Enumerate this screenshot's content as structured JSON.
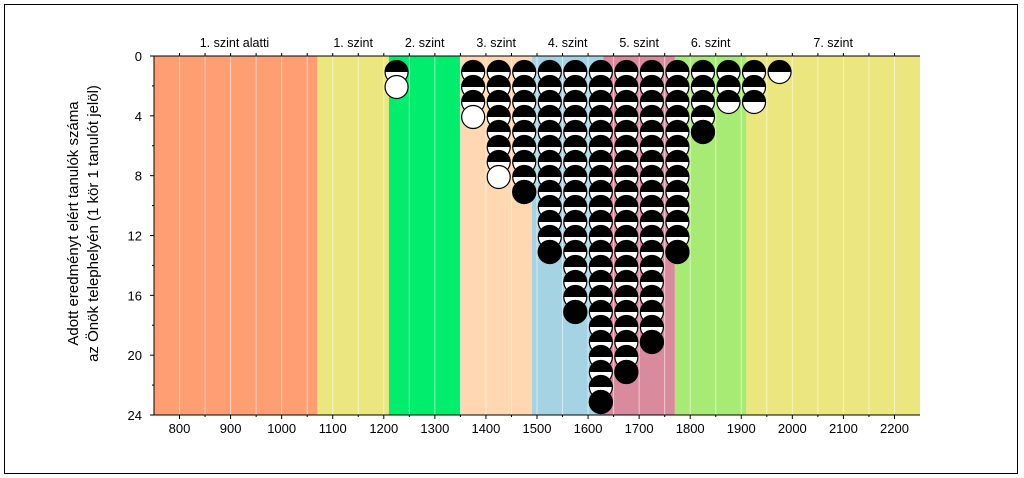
{
  "chart_data": {
    "type": "scatter",
    "title": "",
    "ylabel_lines": [
      "Adott eredményt elért tanulók száma",
      "az Önök telephelyén (1 kör 1 tanulót jelöl)"
    ],
    "xlabel": "",
    "xlim": [
      750,
      2250
    ],
    "ylim": [
      0,
      24
    ],
    "x_ticks": [
      800,
      900,
      1000,
      1100,
      1200,
      1300,
      1400,
      1500,
      1600,
      1700,
      1800,
      1900,
      2000,
      2100,
      2200
    ],
    "y_ticks": [
      0,
      4,
      8,
      12,
      16,
      20,
      24
    ],
    "y_inverted": true,
    "grid": "vertical lines every 50",
    "bands": [
      {
        "label": "1. szint alatti",
        "from": 750,
        "to": 1070,
        "color": "#ff9e73"
      },
      {
        "label": "1. szint",
        "from": 1070,
        "to": 1210,
        "color": "#ebe67e"
      },
      {
        "label": "2. szint",
        "from": 1210,
        "to": 1350,
        "color": "#00ee6b"
      },
      {
        "label": "3. szint",
        "from": 1350,
        "to": 1490,
        "color": "#ffd7b1"
      },
      {
        "label": "4. szint",
        "from": 1490,
        "to": 1630,
        "color": "#a4d4e4"
      },
      {
        "label": "5. szint",
        "from": 1630,
        "to": 1770,
        "color": "#d98a9d"
      },
      {
        "label": "6. szint",
        "from": 1770,
        "to": 1910,
        "color": "#a8eb74"
      },
      {
        "label": "7. szint",
        "from": 1910,
        "to": 2250,
        "color": "#ebe67e"
      }
    ],
    "circle_style": "each circle = 1 student; black/white halves alternate",
    "columns": [
      {
        "x": 1225,
        "count": 2
      },
      {
        "x": 1375,
        "count": 4
      },
      {
        "x": 1425,
        "count": 8
      },
      {
        "x": 1475,
        "count": 9
      },
      {
        "x": 1525,
        "count": 13
      },
      {
        "x": 1575,
        "count": 17
      },
      {
        "x": 1625,
        "count": 23
      },
      {
        "x": 1675,
        "count": 21
      },
      {
        "x": 1725,
        "count": 19
      },
      {
        "x": 1775,
        "count": 13
      },
      {
        "x": 1825,
        "count": 5
      },
      {
        "x": 1875,
        "count": 3
      },
      {
        "x": 1925,
        "count": 3
      },
      {
        "x": 1975,
        "count": 1
      }
    ]
  }
}
